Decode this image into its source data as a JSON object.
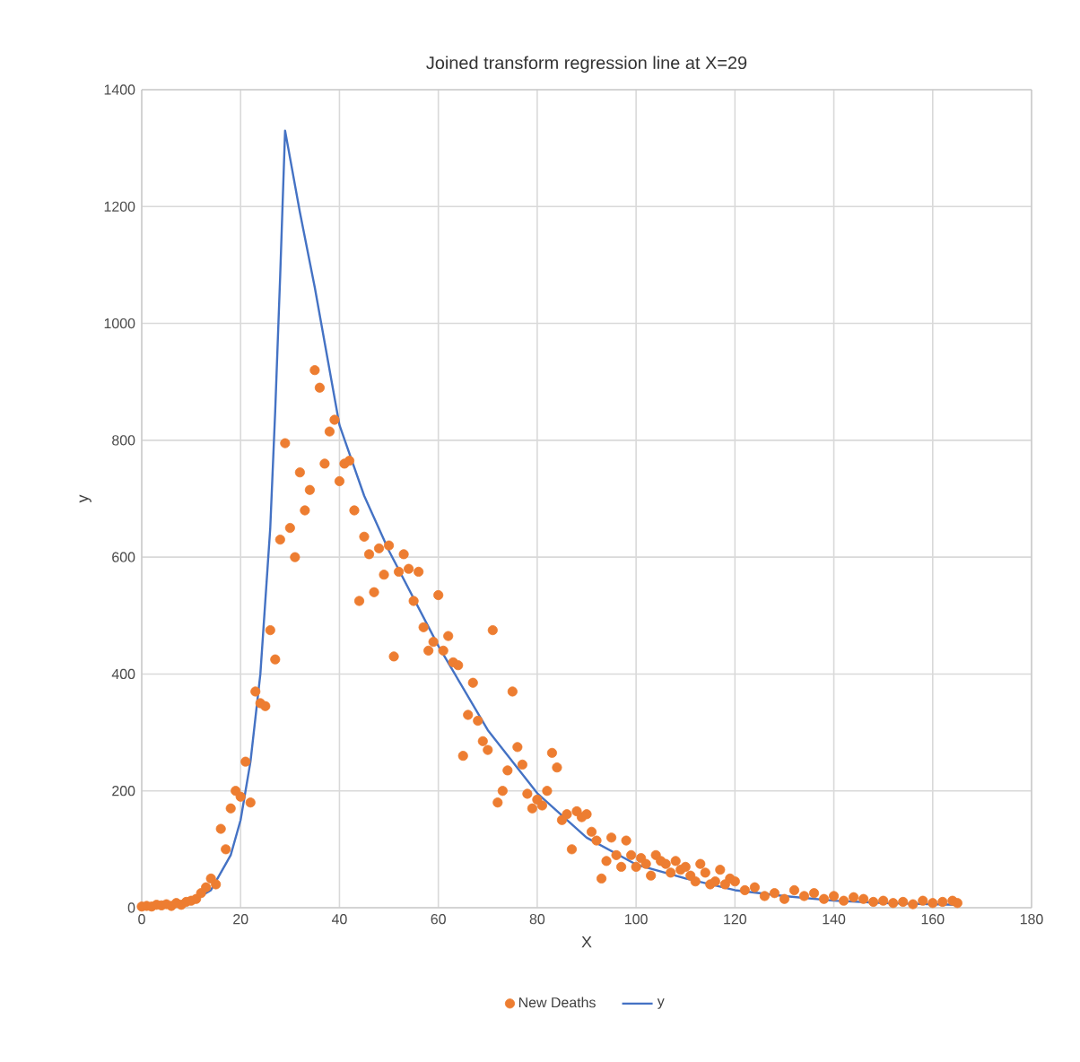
{
  "chart_data": {
    "type": "scatter",
    "title": "Joined transform regression line at X=29",
    "xlabel": "X",
    "ylabel": "y",
    "xlim": [
      0,
      180
    ],
    "ylim": [
      0,
      1400
    ],
    "xticks": [
      0,
      20,
      40,
      60,
      80,
      100,
      120,
      140,
      160,
      180
    ],
    "yticks": [
      0,
      200,
      400,
      600,
      800,
      1000,
      1200,
      1400
    ],
    "grid": true,
    "legend": "bottom",
    "series": [
      {
        "name": "New Deaths",
        "marker": "circle",
        "color": "#ed7d31",
        "x": [
          0,
          1,
          2,
          3,
          4,
          5,
          6,
          7,
          8,
          9,
          10,
          11,
          12,
          13,
          14,
          15,
          16,
          17,
          18,
          19,
          20,
          21,
          22,
          23,
          24,
          25,
          26,
          27,
          28,
          29,
          30,
          31,
          32,
          33,
          34,
          35,
          36,
          37,
          38,
          39,
          40,
          41,
          42,
          43,
          44,
          45,
          46,
          47,
          48,
          49,
          50,
          51,
          52,
          53,
          54,
          55,
          56,
          57,
          58,
          59,
          60,
          61,
          62,
          63,
          64,
          65,
          66,
          67,
          68,
          69,
          70,
          71,
          72,
          73,
          74,
          75,
          76,
          77,
          78,
          79,
          80,
          81,
          82,
          83,
          84,
          85,
          86,
          87,
          88,
          89,
          90,
          91,
          92,
          93,
          94,
          95,
          96,
          97,
          98,
          99,
          100,
          101,
          102,
          103,
          104,
          105,
          106,
          107,
          108,
          109,
          110,
          111,
          112,
          113,
          114,
          115,
          116,
          117,
          118,
          119,
          120,
          122,
          124,
          126,
          128,
          130,
          132,
          134,
          136,
          138,
          140,
          142,
          144,
          146,
          148,
          150,
          152,
          154,
          156,
          158,
          160,
          162,
          164,
          165
        ],
        "values": [
          2,
          3,
          2,
          5,
          4,
          6,
          3,
          8,
          5,
          10,
          12,
          15,
          25,
          35,
          50,
          40,
          135,
          100,
          170,
          200,
          190,
          250,
          180,
          370,
          350,
          345,
          475,
          425,
          630,
          795,
          650,
          600,
          745,
          680,
          715,
          920,
          890,
          760,
          815,
          835,
          730,
          760,
          765,
          680,
          525,
          635,
          605,
          540,
          615,
          570,
          620,
          430,
          575,
          605,
          580,
          525,
          575,
          480,
          440,
          455,
          535,
          440,
          465,
          420,
          415,
          260,
          330,
          385,
          320,
          285,
          270,
          475,
          180,
          200,
          235,
          370,
          275,
          245,
          195,
          170,
          185,
          175,
          200,
          265,
          240,
          150,
          160,
          100,
          165,
          155,
          160,
          130,
          115,
          50,
          80,
          120,
          90,
          70,
          115,
          90,
          70,
          85,
          75,
          55,
          90,
          80,
          75,
          60,
          80,
          65,
          70,
          55,
          45,
          75,
          60,
          40,
          45,
          65,
          40,
          50,
          45,
          30,
          35,
          20,
          25,
          15,
          30,
          20,
          25,
          15,
          20,
          12,
          18,
          15,
          10,
          12,
          8,
          10,
          6,
          12,
          8,
          10,
          12,
          8
        ]
      },
      {
        "name": "y",
        "type": "line",
        "marker": "none",
        "color": "#4472c4",
        "x": [
          10,
          14,
          18,
          20,
          22,
          24,
          26,
          27,
          28,
          29,
          32,
          35,
          40,
          45,
          50,
          60,
          70,
          80,
          90,
          100,
          110,
          120,
          130,
          140,
          150,
          165
        ],
        "values": [
          10,
          30,
          90,
          150,
          250,
          400,
          650,
          850,
          1080,
          1330,
          1190,
          1062,
          826,
          705,
          611,
          448,
          304,
          196,
          120,
          74,
          50,
          30,
          20,
          12,
          8,
          5
        ]
      }
    ]
  }
}
